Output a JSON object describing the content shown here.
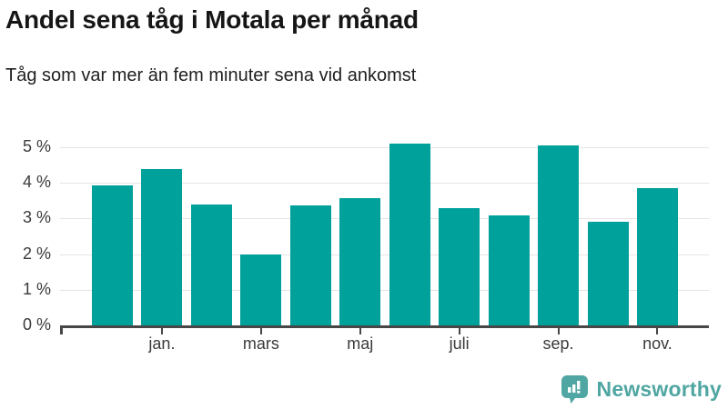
{
  "header": {
    "title": "Andel sena tåg i Motala per månad",
    "subtitle": "Tåg som var mer än fem minuter sena vid ankomst"
  },
  "chart_data": {
    "type": "bar",
    "categories": [
      "",
      "jan.",
      "",
      "mars",
      "",
      "maj",
      "",
      "juli",
      "",
      "sep.",
      "",
      "nov."
    ],
    "values": [
      3.93,
      4.39,
      3.4,
      1.99,
      3.37,
      3.57,
      5.09,
      3.28,
      3.08,
      5.05,
      2.92,
      3.85
    ],
    "title": "Andel sena tåg i Motala per månad",
    "subtitle": "Tåg som var mer än fem minuter sena vid ankomst",
    "xlabel": "",
    "ylabel": "",
    "y_tick_labels": [
      "0 %",
      "1 %",
      "2 %",
      "3 %",
      "4 %",
      "5 %"
    ],
    "ylim": [
      0,
      5
    ],
    "grid": true,
    "legend": false,
    "bar_color": "#00a09b"
  },
  "footer": {
    "logo_text": "Newsworthy",
    "logo_icon": "newsworthy-chart-bubble-icon",
    "logo_color": "#4fa6a2"
  },
  "colors": {
    "bar": "#00a09b",
    "gridline": "#e4e4e4",
    "axis": "#474747",
    "text_dark": "#161616",
    "axis_text": "#3a3a3a",
    "logo": "#4fa6a2"
  }
}
